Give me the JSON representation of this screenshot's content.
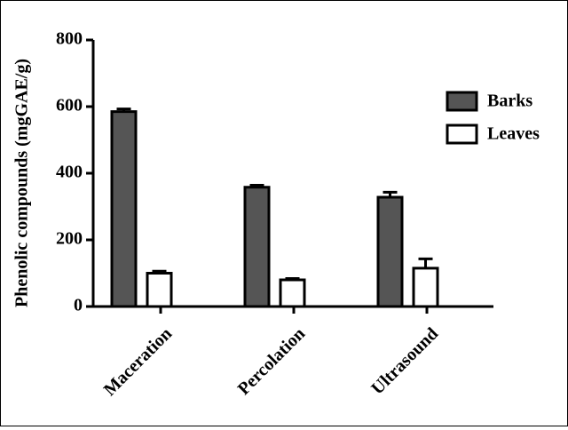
{
  "chart_data": {
    "type": "bar",
    "title": "",
    "xlabel": "",
    "ylabel": "Phenolic compounds (mgGAE/g)",
    "ylim": [
      0,
      800
    ],
    "yticks": [
      0,
      200,
      400,
      600,
      800
    ],
    "categories": [
      "Maceration",
      "Percolation",
      "Ultrasound"
    ],
    "series": [
      {
        "name": "Barks",
        "color": "#555555",
        "values": [
          585,
          358,
          328
        ],
        "errors": [
          8,
          6,
          15
        ]
      },
      {
        "name": "Leaves",
        "color": "#ffffff",
        "values": [
          100,
          80,
          115
        ],
        "errors": [
          6,
          4,
          28
        ]
      }
    ],
    "legend": "right",
    "grid": false
  }
}
